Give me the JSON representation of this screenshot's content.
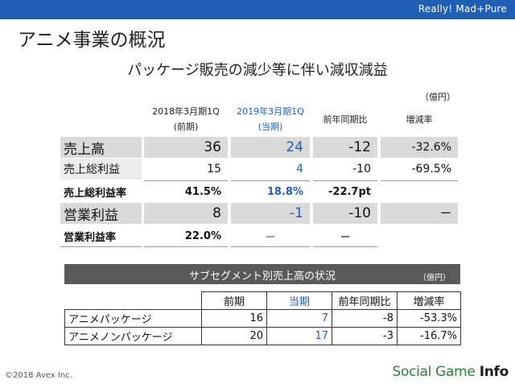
{
  "brand": "Really! Mad+Pure",
  "page_title": "アニメ事業の概況",
  "subtitle": "パッケージ販売の減少等に伴い減収減益",
  "unit_top": "（億円）",
  "columns": {
    "prev_line1": "2018年3月期1Q",
    "prev_line2": "(前期)",
    "cur_line1": "2019年3月期1Q",
    "cur_line2": "(当期)",
    "yoy": "前年同期比",
    "rate": "増減率"
  },
  "rows": [
    {
      "label": "売上高",
      "prev": "36",
      "cur": "24",
      "yoy": "-12",
      "rate": "-32.6%"
    },
    {
      "label": "売上総利益",
      "prev": "15",
      "cur": "4",
      "yoy": "-10",
      "rate": "-69.5%"
    },
    {
      "label": "売上総利益率",
      "prev": "41.5%",
      "cur": "18.8%",
      "yoy": "-22.7pt",
      "rate": ""
    },
    {
      "label": "営業利益",
      "prev": "8",
      "cur": "-1",
      "yoy": "-10",
      "rate": "ー"
    },
    {
      "label": "営業利益率",
      "prev": "22.0%",
      "cur": "ー",
      "yoy": "ー",
      "rate": ""
    }
  ],
  "subsegment": {
    "title": "サブセグメント別売上高の状況",
    "unit": "（億円）",
    "headers": {
      "prev": "前期",
      "cur": "当期",
      "yoy": "前年同期比",
      "rate": "増減率"
    },
    "rows": [
      {
        "label": "アニメパッケージ",
        "prev": "16",
        "cur": "7",
        "yoy": "-8",
        "rate": "-53.3%"
      },
      {
        "label": "アニメノンパッケージ",
        "prev": "20",
        "cur": "17",
        "yoy": "-3",
        "rate": "-16.7%"
      }
    ]
  },
  "copyright": "©2018 Avex Inc.",
  "watermark": {
    "part1": "Social Game ",
    "part2": "Info"
  },
  "colors": {
    "accent": "#1f5fb5",
    "shade": "#d9d9d9",
    "header_dark": "#595959",
    "watermark": "#2f7d3a"
  }
}
